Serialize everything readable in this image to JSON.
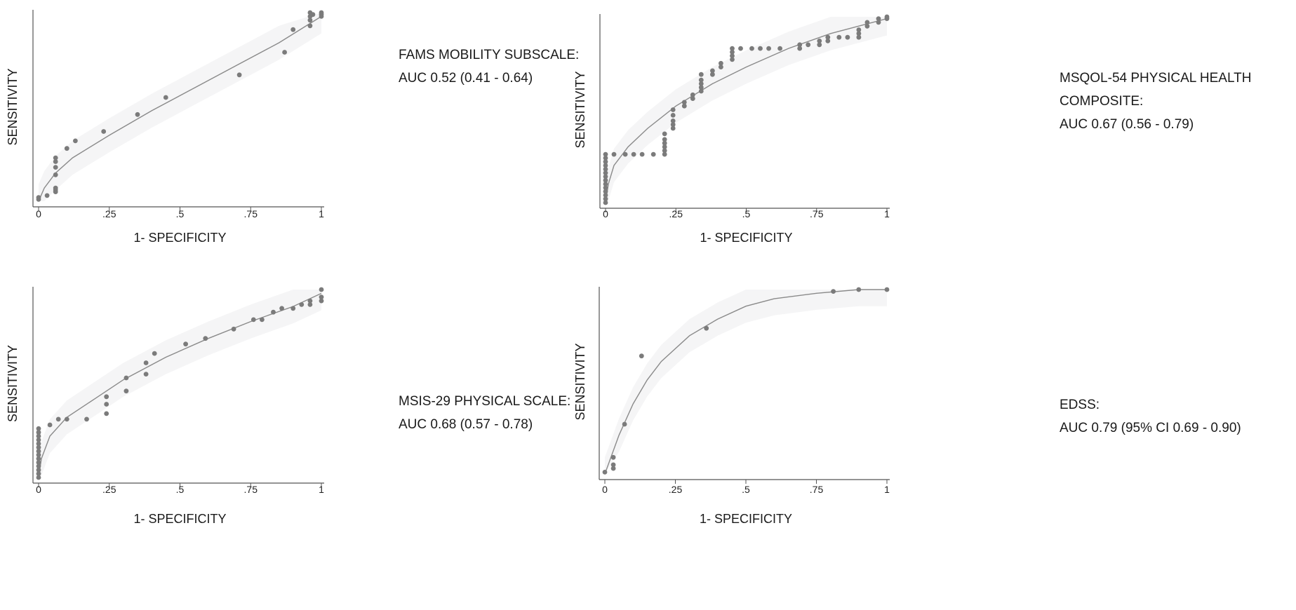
{
  "chart_data": [
    {
      "type": "scatter",
      "panel": "top-left",
      "xlabel": "1- SPECIFICITY",
      "ylabel": "SENSITIVITY",
      "xlim": [
        0,
        1
      ],
      "ylim": [
        0,
        1
      ],
      "xticks": [
        "0",
        ".25",
        ".5",
        ".75",
        "1"
      ],
      "label_lines": [
        "FAMS MOBILITY SUBSCALE:",
        "AUC 0.52 (0.41 - 0.64)"
      ],
      "points": [
        [
          0,
          0.01
        ],
        [
          0,
          0.02
        ],
        [
          0.03,
          0.03
        ],
        [
          0.06,
          0.05
        ],
        [
          0.06,
          0.06
        ],
        [
          0.06,
          0.07
        ],
        [
          0.06,
          0.14
        ],
        [
          0.06,
          0.18
        ],
        [
          0.06,
          0.21
        ],
        [
          0.06,
          0.23
        ],
        [
          0.1,
          0.28
        ],
        [
          0.13,
          0.32
        ],
        [
          0.23,
          0.37
        ],
        [
          0.35,
          0.46
        ],
        [
          0.45,
          0.55
        ],
        [
          0.71,
          0.67
        ],
        [
          0.87,
          0.79
        ],
        [
          0.9,
          0.91
        ],
        [
          0.96,
          0.93
        ],
        [
          0.96,
          0.96
        ],
        [
          0.96,
          0.98
        ],
        [
          0.96,
          1
        ],
        [
          0.97,
          0.99
        ],
        [
          1,
          0.98
        ],
        [
          1,
          0.99
        ],
        [
          1,
          1
        ]
      ],
      "curve": [
        [
          0,
          0
        ],
        [
          0.02,
          0.07
        ],
        [
          0.06,
          0.15
        ],
        [
          0.12,
          0.23
        ],
        [
          0.25,
          0.35
        ],
        [
          0.4,
          0.48
        ],
        [
          0.55,
          0.6
        ],
        [
          0.7,
          0.72
        ],
        [
          0.85,
          0.84
        ],
        [
          1,
          0.98
        ]
      ]
    },
    {
      "type": "scatter",
      "panel": "top-right",
      "xlabel": "1- SPECIFICITY",
      "ylabel": "SENSITIVITY",
      "xlim": [
        0,
        1
      ],
      "ylim": [
        0,
        1
      ],
      "xticks": [
        "0",
        ".25",
        ".5",
        ".75",
        "1"
      ],
      "label_lines": [
        "MSQOL-54 PHYSICAL HEALTH",
        "COMPOSITE:",
        "AUC 0.67 (0.56 - 0.79)"
      ],
      "points": [
        [
          0,
          0.0
        ],
        [
          0,
          0.02
        ],
        [
          0,
          0.04
        ],
        [
          0,
          0.06
        ],
        [
          0,
          0.08
        ],
        [
          0,
          0.1
        ],
        [
          0,
          0.12
        ],
        [
          0,
          0.14
        ],
        [
          0,
          0.16
        ],
        [
          0,
          0.18
        ],
        [
          0,
          0.2
        ],
        [
          0,
          0.22
        ],
        [
          0,
          0.24
        ],
        [
          0,
          0.26
        ],
        [
          0.03,
          0.26
        ],
        [
          0.07,
          0.26
        ],
        [
          0.1,
          0.26
        ],
        [
          0.13,
          0.26
        ],
        [
          0.17,
          0.26
        ],
        [
          0.21,
          0.26
        ],
        [
          0.21,
          0.28
        ],
        [
          0.21,
          0.3
        ],
        [
          0.21,
          0.32
        ],
        [
          0.21,
          0.34
        ],
        [
          0.21,
          0.37
        ],
        [
          0.24,
          0.4
        ],
        [
          0.24,
          0.42
        ],
        [
          0.24,
          0.44
        ],
        [
          0.24,
          0.47
        ],
        [
          0.24,
          0.5
        ],
        [
          0.28,
          0.52
        ],
        [
          0.28,
          0.54
        ],
        [
          0.31,
          0.56
        ],
        [
          0.31,
          0.58
        ],
        [
          0.34,
          0.6
        ],
        [
          0.34,
          0.62
        ],
        [
          0.34,
          0.64
        ],
        [
          0.34,
          0.66
        ],
        [
          0.34,
          0.69
        ],
        [
          0.38,
          0.69
        ],
        [
          0.38,
          0.71
        ],
        [
          0.41,
          0.73
        ],
        [
          0.41,
          0.75
        ],
        [
          0.45,
          0.77
        ],
        [
          0.45,
          0.79
        ],
        [
          0.45,
          0.81
        ],
        [
          0.45,
          0.83
        ],
        [
          0.48,
          0.83
        ],
        [
          0.52,
          0.83
        ],
        [
          0.55,
          0.83
        ],
        [
          0.58,
          0.83
        ],
        [
          0.62,
          0.83
        ],
        [
          0.69,
          0.83
        ],
        [
          0.69,
          0.85
        ],
        [
          0.72,
          0.85
        ],
        [
          0.76,
          0.85
        ],
        [
          0.76,
          0.87
        ],
        [
          0.79,
          0.87
        ],
        [
          0.79,
          0.89
        ],
        [
          0.83,
          0.89
        ],
        [
          0.86,
          0.89
        ],
        [
          0.9,
          0.89
        ],
        [
          0.9,
          0.91
        ],
        [
          0.9,
          0.93
        ],
        [
          0.93,
          0.95
        ],
        [
          0.93,
          0.97
        ],
        [
          0.97,
          0.97
        ],
        [
          0.97,
          0.99
        ],
        [
          1,
          0.99
        ],
        [
          1,
          1
        ]
      ],
      "curve": [
        [
          0,
          0
        ],
        [
          0.01,
          0.1
        ],
        [
          0.03,
          0.2
        ],
        [
          0.08,
          0.3
        ],
        [
          0.15,
          0.4
        ],
        [
          0.25,
          0.52
        ],
        [
          0.38,
          0.64
        ],
        [
          0.5,
          0.73
        ],
        [
          0.65,
          0.83
        ],
        [
          0.8,
          0.91
        ],
        [
          1,
          0.99
        ]
      ]
    },
    {
      "type": "scatter",
      "panel": "bottom-left",
      "xlabel": "1- SPECIFICITY",
      "ylabel": "SENSITIVITY",
      "xlim": [
        0,
        1
      ],
      "ylim": [
        0,
        1
      ],
      "xticks": [
        "0",
        ".25",
        ".5",
        ".75",
        "1"
      ],
      "label_lines": [
        "MSIS-29 PHYSICAL SCALE:",
        "AUC 0.68 (0.57 - 0.78)"
      ],
      "points": [
        [
          0,
          0.0
        ],
        [
          0,
          0.02
        ],
        [
          0,
          0.04
        ],
        [
          0,
          0.06
        ],
        [
          0,
          0.08
        ],
        [
          0,
          0.1
        ],
        [
          0,
          0.12
        ],
        [
          0,
          0.14
        ],
        [
          0,
          0.16
        ],
        [
          0,
          0.18
        ],
        [
          0,
          0.2
        ],
        [
          0,
          0.22
        ],
        [
          0,
          0.24
        ],
        [
          0,
          0.26
        ],
        [
          0.04,
          0.28
        ],
        [
          0.07,
          0.31
        ],
        [
          0.1,
          0.31
        ],
        [
          0.17,
          0.31
        ],
        [
          0.24,
          0.34
        ],
        [
          0.24,
          0.39
        ],
        [
          0.24,
          0.43
        ],
        [
          0.31,
          0.46
        ],
        [
          0.31,
          0.53
        ],
        [
          0.38,
          0.55
        ],
        [
          0.38,
          0.61
        ],
        [
          0.41,
          0.66
        ],
        [
          0.52,
          0.71
        ],
        [
          0.59,
          0.74
        ],
        [
          0.69,
          0.79
        ],
        [
          0.76,
          0.84
        ],
        [
          0.79,
          0.84
        ],
        [
          0.83,
          0.88
        ],
        [
          0.86,
          0.9
        ],
        [
          0.9,
          0.9
        ],
        [
          0.93,
          0.92
        ],
        [
          0.96,
          0.92
        ],
        [
          0.96,
          0.94
        ],
        [
          1,
          0.94
        ],
        [
          1,
          0.96
        ],
        [
          1,
          1
        ]
      ],
      "curve": [
        [
          0,
          0
        ],
        [
          0.01,
          0.1
        ],
        [
          0.04,
          0.22
        ],
        [
          0.1,
          0.32
        ],
        [
          0.2,
          0.42
        ],
        [
          0.3,
          0.52
        ],
        [
          0.45,
          0.64
        ],
        [
          0.6,
          0.74
        ],
        [
          0.75,
          0.83
        ],
        [
          0.9,
          0.91
        ],
        [
          1,
          0.98
        ]
      ]
    },
    {
      "type": "scatter",
      "panel": "bottom-right",
      "xlabel": "1- SPECIFICITY",
      "ylabel": "SENSITIVITY",
      "xlim": [
        0,
        1
      ],
      "ylim": [
        0,
        1
      ],
      "xticks": [
        "0",
        ".25",
        ".5",
        ".75",
        "1"
      ],
      "label_lines": [
        "EDSS:",
        "AUC 0.79 (95% CI 0.69 - 0.90)"
      ],
      "points": [
        [
          0,
          0.01
        ],
        [
          0.03,
          0.03
        ],
        [
          0.03,
          0.05
        ],
        [
          0.03,
          0.09
        ],
        [
          0.07,
          0.27
        ],
        [
          0.13,
          0.64
        ],
        [
          0.36,
          0.79
        ],
        [
          0.81,
          0.99
        ],
        [
          0.9,
          1
        ],
        [
          1,
          1
        ]
      ],
      "curve": [
        [
          0,
          0
        ],
        [
          0.05,
          0.21
        ],
        [
          0.1,
          0.38
        ],
        [
          0.15,
          0.51
        ],
        [
          0.2,
          0.61
        ],
        [
          0.3,
          0.75
        ],
        [
          0.4,
          0.84
        ],
        [
          0.5,
          0.91
        ],
        [
          0.6,
          0.95
        ],
        [
          0.75,
          0.98
        ],
        [
          0.9,
          1.0
        ],
        [
          1,
          1.0
        ]
      ]
    }
  ]
}
